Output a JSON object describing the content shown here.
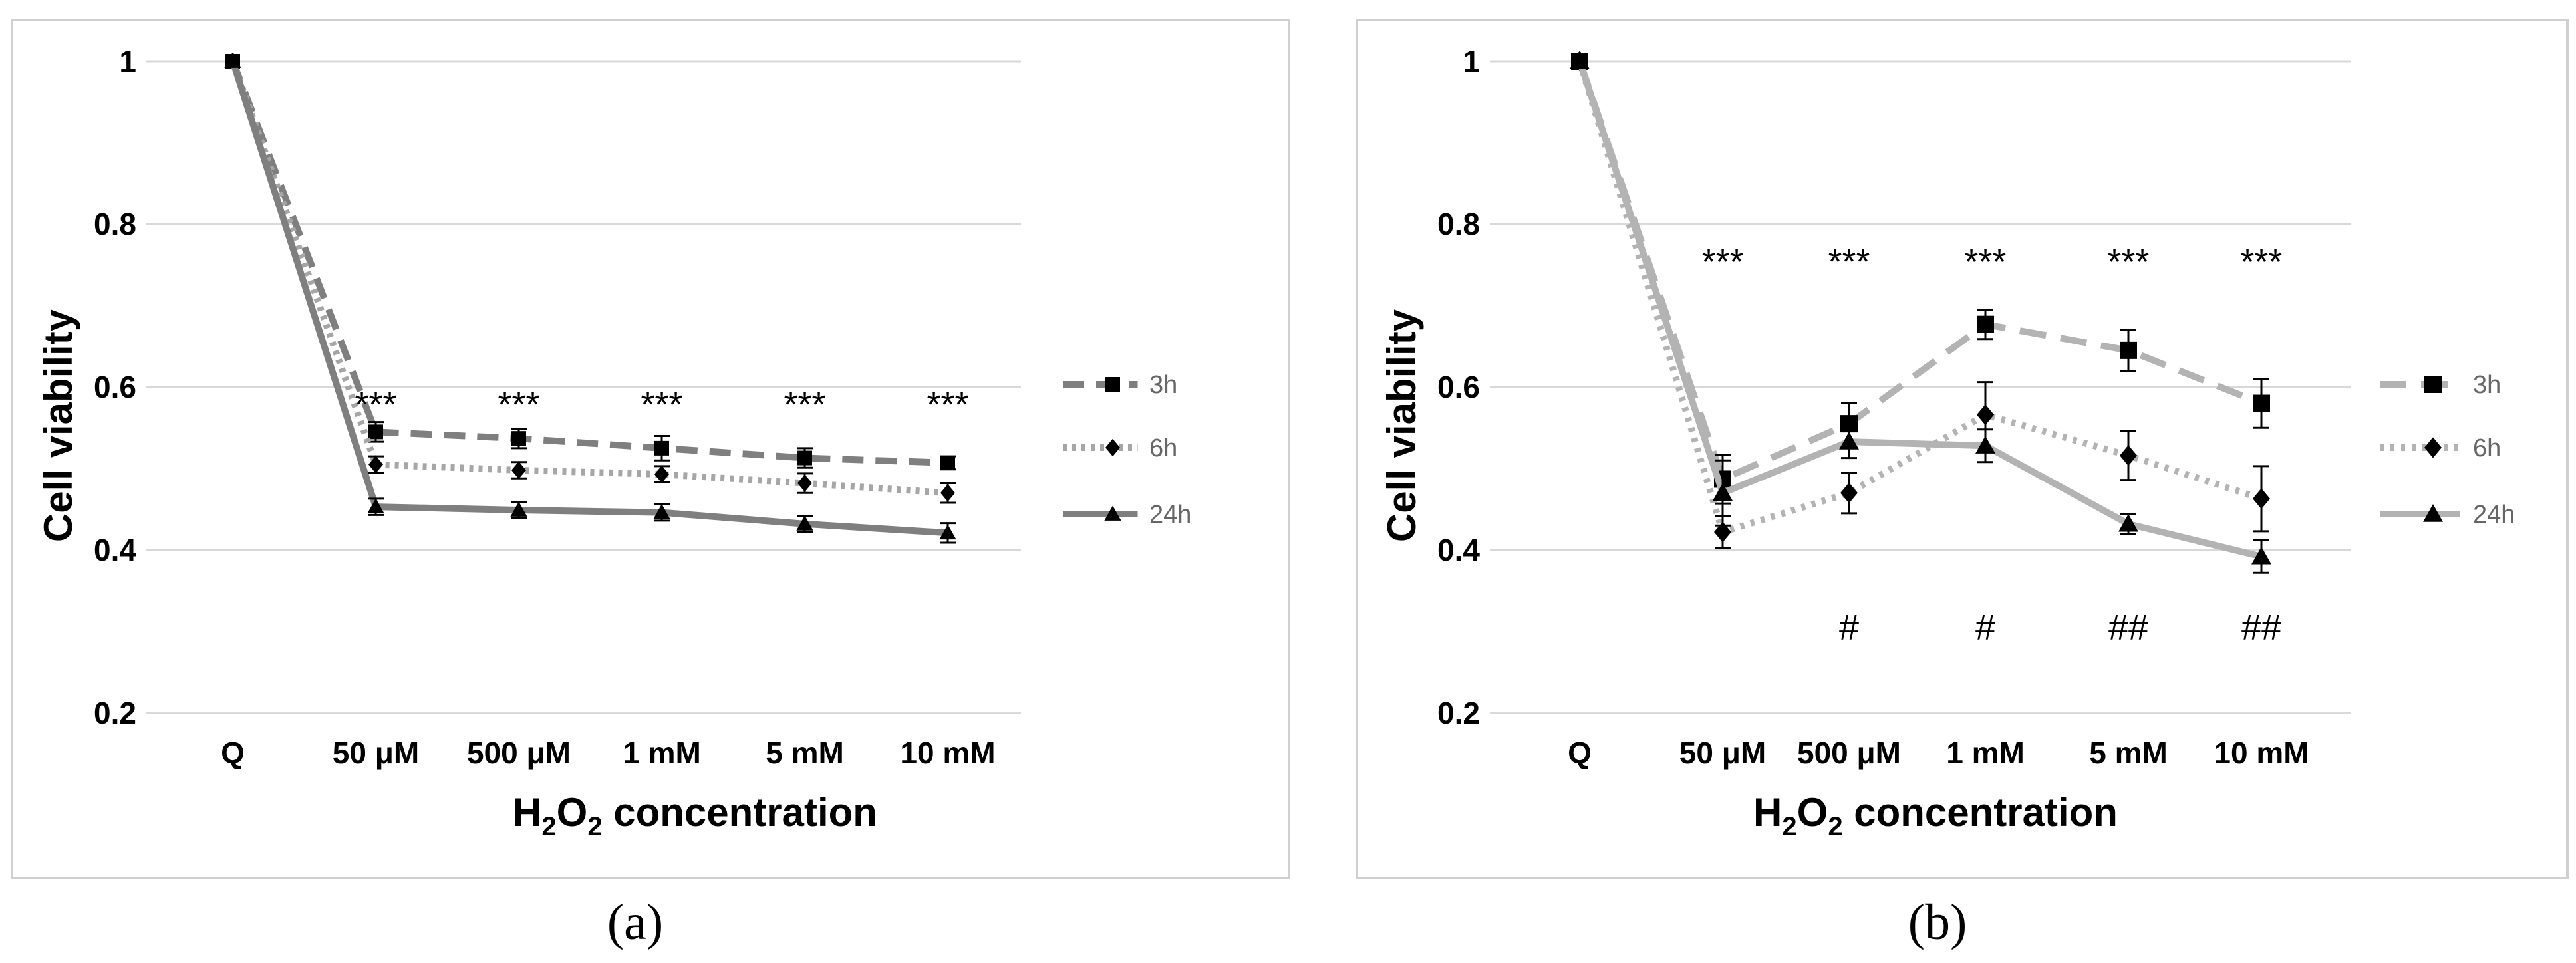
{
  "chart_data": [
    {
      "id": "a",
      "type": "line",
      "caption": "(a)",
      "xlabel_main": "H",
      "xlabel_sub1": "2",
      "xlabel_mid": "O",
      "xlabel_sub2": "2",
      "xlabel_tail": " concentration",
      "ylabel": "Cell viability",
      "categories": [
        "Q",
        "50 μM",
        "500 μM",
        "1 mM",
        "5 mM",
        "10 mM"
      ],
      "ylim": [
        0.2,
        1.0
      ],
      "yticks": [
        0.2,
        0.4,
        0.6,
        0.8,
        1
      ],
      "ytick_labels": [
        "0.2",
        "0.4",
        "0.6",
        "0.8",
        "1"
      ],
      "grid": true,
      "legend_position": "right",
      "series": [
        {
          "name": "3h",
          "values": [
            1,
            0.545,
            0.537,
            0.525,
            0.513,
            0.507
          ],
          "errors": [
            0,
            0.012,
            0.012,
            0.015,
            0.012,
            0.008
          ],
          "color": "#7f7f7f",
          "dash": "32,18",
          "marker": "square"
        },
        {
          "name": "6h",
          "values": [
            1,
            0.505,
            0.498,
            0.493,
            0.482,
            0.47
          ],
          "errors": [
            0,
            0.01,
            0.01,
            0.01,
            0.012,
            0.012
          ],
          "color": "#a6a6a6",
          "dash": "6,8",
          "marker": "diamond"
        },
        {
          "name": "24h",
          "values": [
            1,
            0.453,
            0.449,
            0.446,
            0.432,
            0.421
          ],
          "errors": [
            0,
            0.01,
            0.01,
            0.01,
            0.01,
            0.012
          ],
          "color": "#7f7f7f",
          "dash": "",
          "marker": "triangle"
        }
      ],
      "annotations_top": [
        {
          "index": 1,
          "text": "***",
          "y": 0.58
        },
        {
          "index": 2,
          "text": "***",
          "y": 0.58
        },
        {
          "index": 3,
          "text": "***",
          "y": 0.58
        },
        {
          "index": 4,
          "text": "***",
          "y": 0.58
        },
        {
          "index": 5,
          "text": "***",
          "y": 0.58
        }
      ],
      "annotations_bottom": []
    },
    {
      "id": "b",
      "type": "line",
      "caption": "(b)",
      "xlabel_main": "H",
      "xlabel_sub1": "2",
      "xlabel_mid": "O",
      "xlabel_sub2": "2",
      "xlabel_tail": " concentration",
      "ylabel": "Cell viability",
      "categories": [
        "Q",
        "50 μM",
        "500 μM",
        "1 mM",
        "5 mM",
        "10 mM"
      ],
      "ylim": [
        0.2,
        1.0
      ],
      "yticks": [
        0.2,
        0.4,
        0.6,
        0.8,
        1
      ],
      "ytick_labels": [
        "0.2",
        "0.4",
        "0.6",
        "0.8",
        "1"
      ],
      "grid": true,
      "legend_position": "right",
      "series": [
        {
          "name": "3h",
          "values": [
            1,
            0.487,
            0.555,
            0.677,
            0.645,
            0.58
          ],
          "errors": [
            0,
            0.03,
            0.025,
            0.018,
            0.025,
            0.03
          ],
          "color": "#b3b3b3",
          "dash": "40,22",
          "marker": "square"
        },
        {
          "name": "6h",
          "values": [
            1,
            0.422,
            0.47,
            0.566,
            0.516,
            0.463
          ],
          "errors": [
            0,
            0.02,
            0.025,
            0.04,
            0.03,
            0.04
          ],
          "color": "#b3b3b3",
          "dash": "6,10",
          "marker": "diamond"
        },
        {
          "name": "24h",
          "values": [
            1,
            0.47,
            0.533,
            0.528,
            0.432,
            0.392
          ],
          "errors": [
            0,
            0.04,
            0.02,
            0.02,
            0.012,
            0.02
          ],
          "color": "#b3b3b3",
          "dash": "",
          "marker": "triangle"
        }
      ],
      "annotations_top": [
        {
          "index": 1,
          "text": "***",
          "y": 0.755
        },
        {
          "index": 2,
          "text": "***",
          "y": 0.755
        },
        {
          "index": 3,
          "text": "***",
          "y": 0.755
        },
        {
          "index": 4,
          "text": "***",
          "y": 0.755
        },
        {
          "index": 5,
          "text": "***",
          "y": 0.755
        }
      ],
      "annotations_bottom": [
        {
          "index": 2,
          "text": "#",
          "y": 0.305
        },
        {
          "index": 3,
          "text": "#",
          "y": 0.305
        },
        {
          "index": 4,
          "text": "##",
          "y": 0.305
        },
        {
          "index": 5,
          "text": "##",
          "y": 0.305
        }
      ]
    }
  ]
}
